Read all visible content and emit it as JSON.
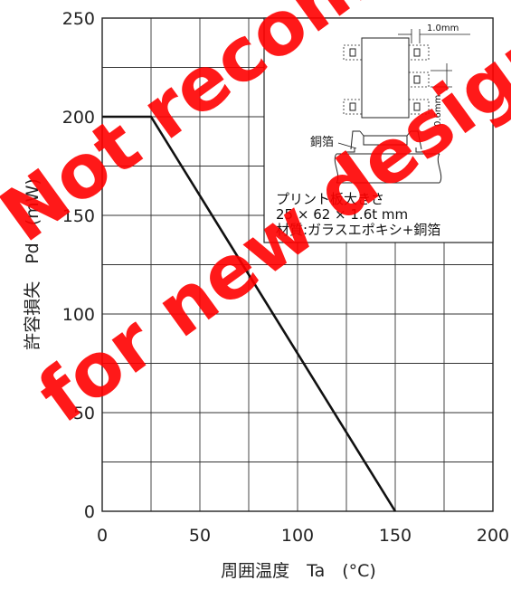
{
  "chart_data": {
    "type": "line",
    "xlabel": "周囲温度　Ta　(°C)",
    "ylabel": "許容損失　Pd　(mW)",
    "xlim": [
      0,
      200
    ],
    "ylim": [
      0,
      250
    ],
    "x_ticks": [
      "0",
      "50",
      "100",
      "150",
      "200"
    ],
    "y_ticks": [
      "0",
      "50",
      "100",
      "150",
      "200",
      "250"
    ],
    "grid": true,
    "series": [
      {
        "x": [
          0,
          25,
          150
        ],
        "y": [
          200,
          200,
          0
        ]
      }
    ],
    "annotation": {
      "line1": "プリント板大きさ",
      "line2": "25 × 62 × 1.6t mm",
      "line3": "材質:ガラスエポキシ+銅箔",
      "copper_label": "銅箔",
      "dim_width": "1.0mm",
      "dim_height": "0.6mm"
    },
    "watermark": [
      "Not recommended",
      "for new designs"
    ]
  }
}
